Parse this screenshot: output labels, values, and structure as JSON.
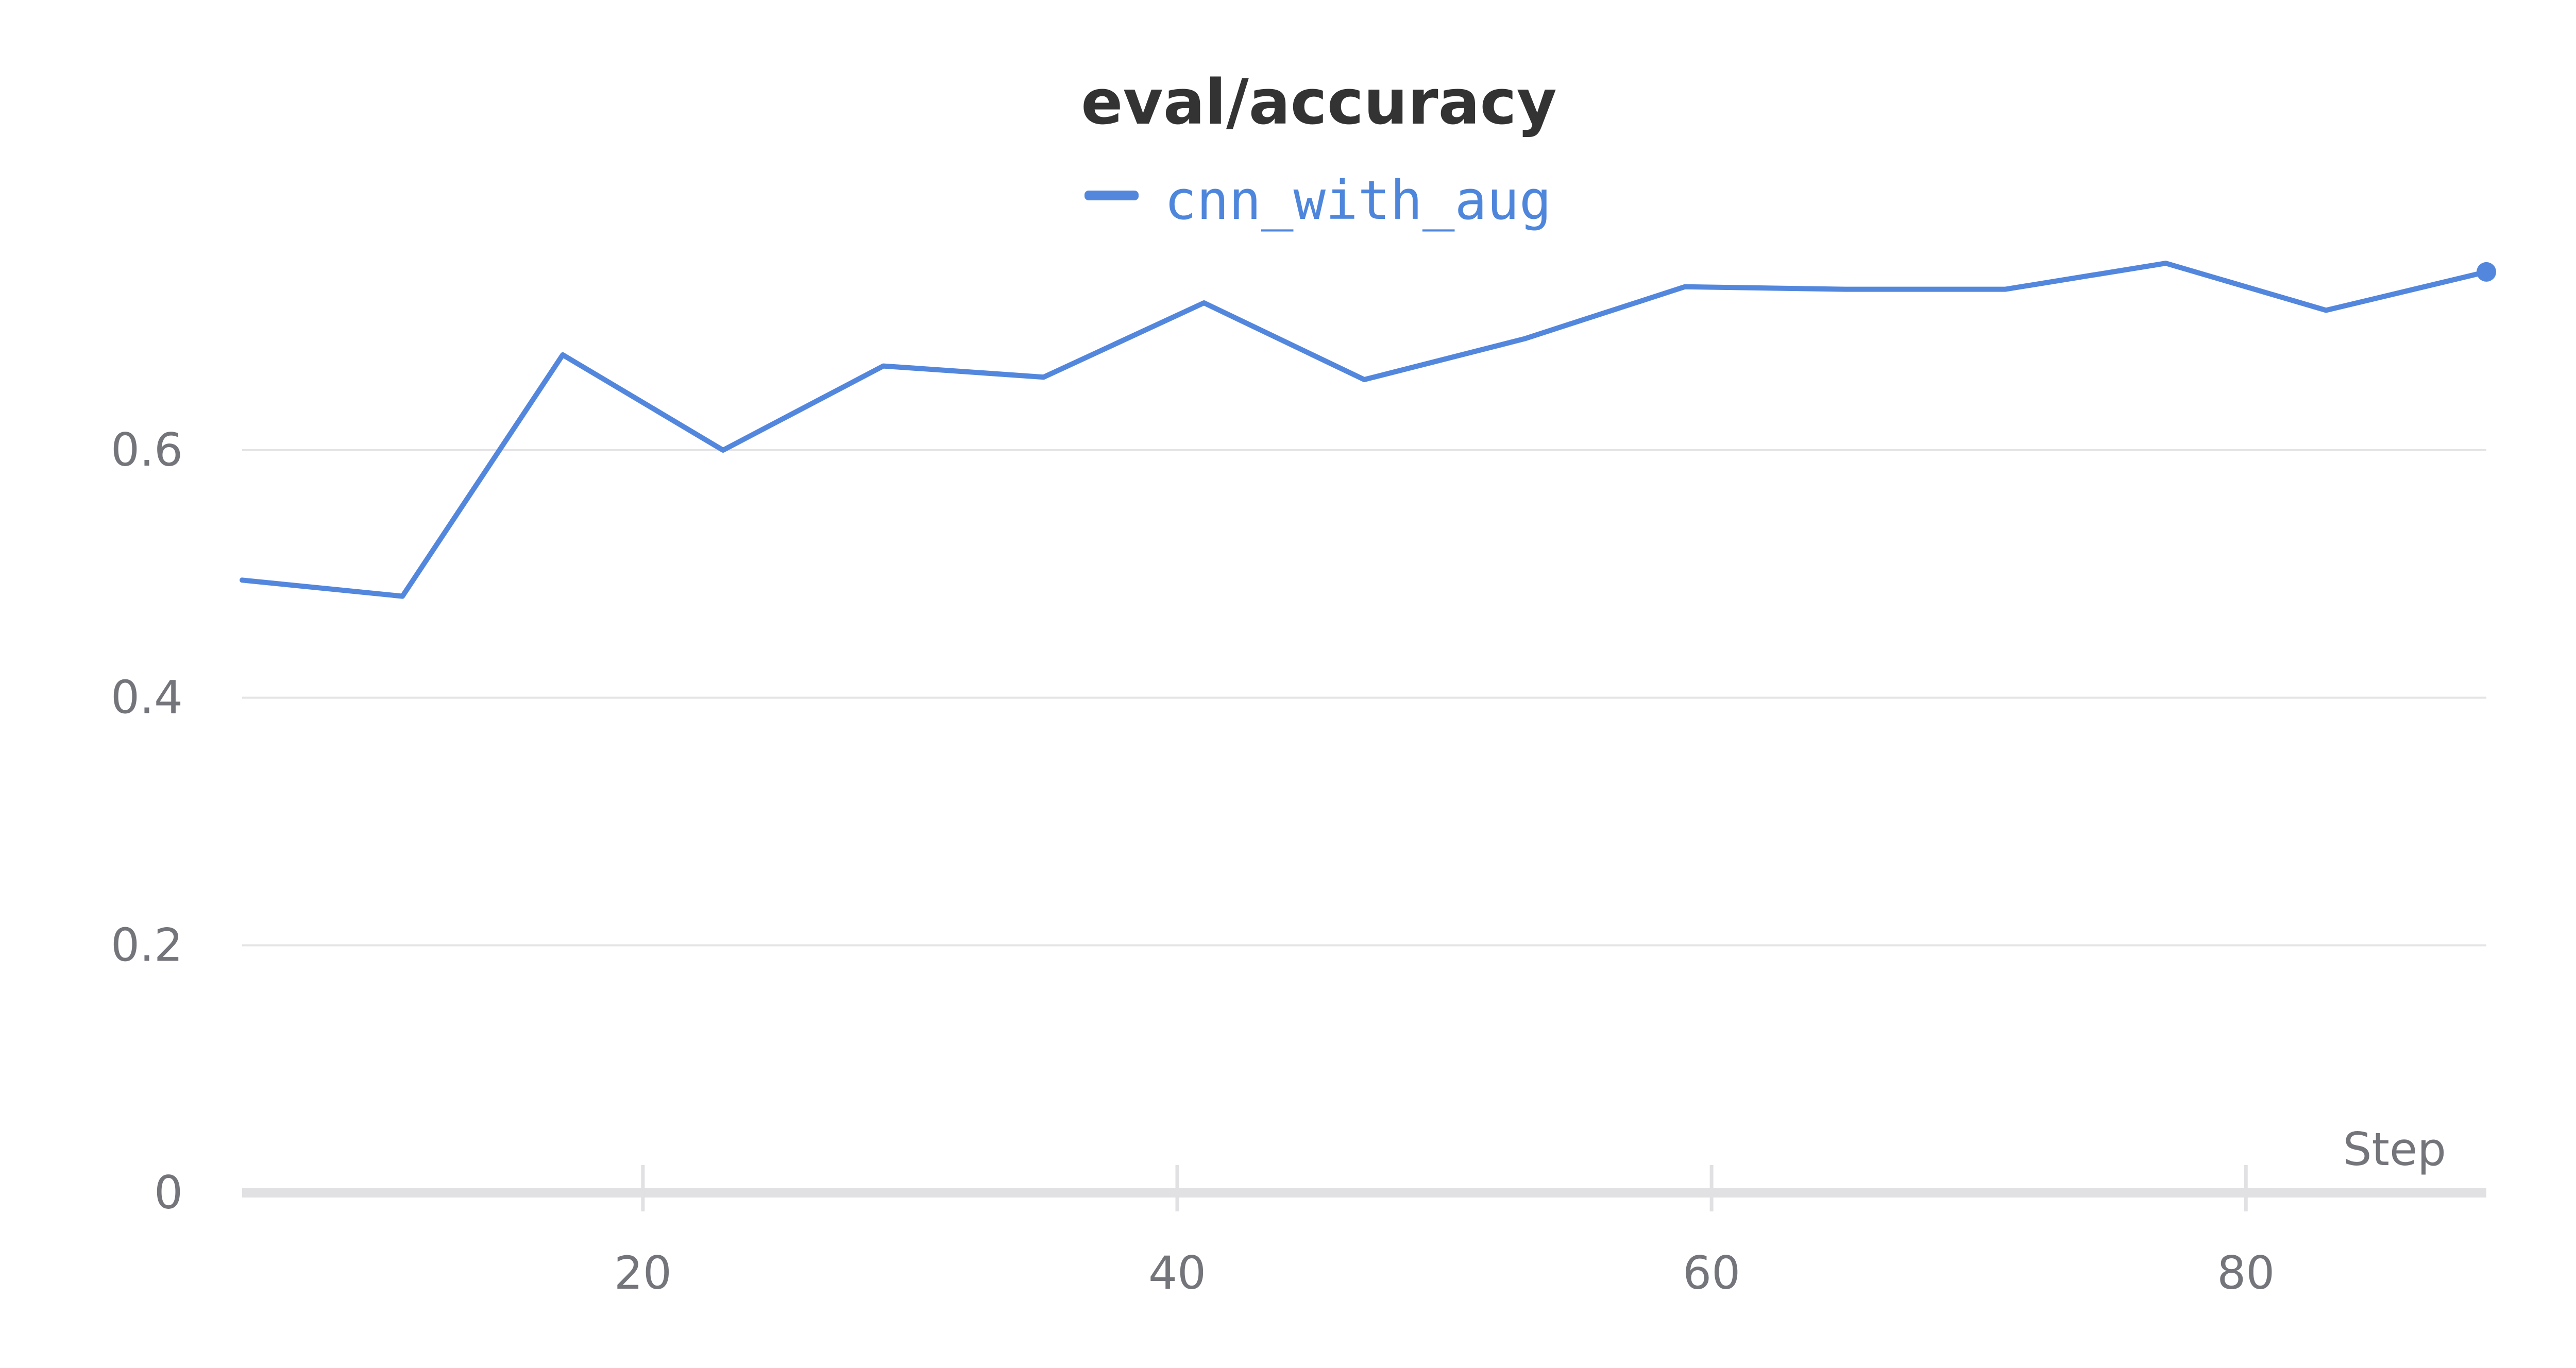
{
  "chart_data": {
    "type": "line",
    "title": "eval/accuracy",
    "xlabel": "Step",
    "ylabel": "",
    "xlim": [
      5,
      89
    ],
    "ylim": [
      0,
      0.8
    ],
    "x_ticks": [
      20,
      40,
      60,
      80
    ],
    "y_ticks": [
      0,
      0.2,
      0.4,
      0.6
    ],
    "grid": "horizontal",
    "legend": "top-center",
    "series": [
      {
        "name": "cnn_with_aug",
        "color": "#5387DD",
        "x": [
          5,
          11,
          17,
          23,
          29,
          35,
          41,
          47,
          53,
          59,
          65,
          71,
          77,
          83,
          89
        ],
        "values": [
          0.495,
          0.482,
          0.677,
          0.6,
          0.668,
          0.659,
          0.719,
          0.657,
          0.69,
          0.732,
          0.73,
          0.73,
          0.751,
          0.713,
          0.744
        ]
      }
    ]
  }
}
